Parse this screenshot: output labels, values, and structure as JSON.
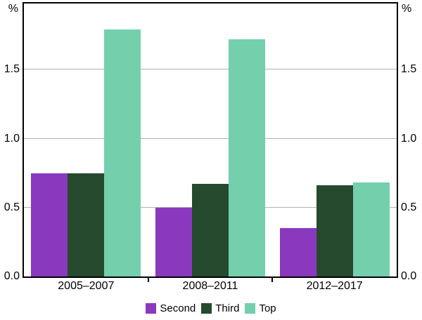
{
  "chart_data": {
    "type": "bar",
    "title": "",
    "unit_label_left": "%",
    "unit_label_right": "%",
    "categories": [
      "2005–2007",
      "2008–2011",
      "2012–2017"
    ],
    "series": [
      {
        "name": "Second",
        "color": "#8A39BF",
        "values": [
          0.75,
          0.5,
          0.35
        ]
      },
      {
        "name": "Third",
        "color": "#254A2E",
        "values": [
          0.75,
          0.67,
          0.66
        ]
      },
      {
        "name": "Top",
        "color": "#74CFAD",
        "values": [
          1.79,
          1.72,
          0.68
        ]
      }
    ],
    "yticks": [
      "0.0",
      "0.5",
      "1.0",
      "1.5"
    ],
    "ytick_values": [
      0.0,
      0.5,
      1.0,
      1.5
    ],
    "ylim": [
      0,
      1.98
    ],
    "grid": true,
    "gridline_color": "#b0b0b0",
    "frame_color": "#000000",
    "legend_position": "bottom"
  }
}
